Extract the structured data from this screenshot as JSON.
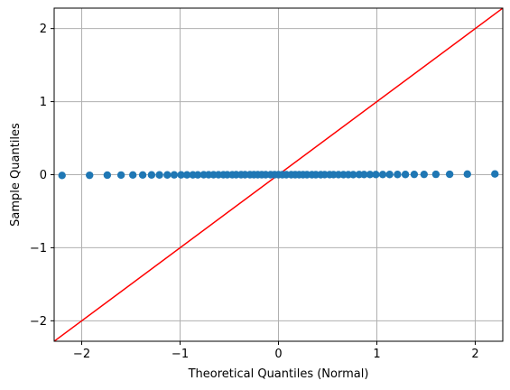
{
  "chart_data": {
    "type": "scatter",
    "title": "",
    "xlabel": "Theoretical Quantiles (Normal)",
    "ylabel": "Sample Quantiles",
    "xlim": [
      -2.28,
      2.28
    ],
    "ylim": [
      -2.28,
      2.28
    ],
    "grid": true,
    "xticks": [
      -2,
      -1,
      0,
      1,
      2
    ],
    "yticks": [
      -2,
      -1,
      0,
      1,
      2
    ],
    "xtick_labels": [
      "−2",
      "−1",
      "0",
      "1",
      "2"
    ],
    "ytick_labels": [
      "−2",
      "−1",
      "0",
      "1",
      "2"
    ],
    "reference_line": {
      "x": [
        -2.28,
        2.28
      ],
      "y": [
        -2.28,
        2.28
      ]
    },
    "colors": {
      "points": "#1f77b4",
      "line": "#ff0000",
      "grid": "#b0b0b0"
    },
    "series": [
      {
        "x": [
          -2.2,
          -1.92,
          -1.74,
          -1.6,
          -1.48,
          -1.38,
          -1.29,
          -1.21,
          -1.13,
          -1.06,
          -0.99,
          -0.93,
          -0.87,
          -0.82,
          -0.76,
          -0.71,
          -0.66,
          -0.61,
          -0.56,
          -0.52,
          -0.47,
          -0.43,
          -0.38,
          -0.34,
          -0.29,
          -0.25,
          -0.21,
          -0.17,
          -0.13,
          -0.08,
          -0.04,
          0.0,
          0.04,
          0.08,
          0.13,
          0.17,
          0.21,
          0.25,
          0.29,
          0.34,
          0.38,
          0.43,
          0.47,
          0.52,
          0.56,
          0.61,
          0.66,
          0.71,
          0.76,
          0.82,
          0.87,
          0.93,
          0.99,
          1.06,
          1.13,
          1.21,
          1.29,
          1.38,
          1.48,
          1.6,
          1.74,
          1.92,
          2.2
        ],
        "y": [
          -0.01,
          -0.008,
          -0.006,
          -0.005,
          -0.004,
          -0.004,
          -0.003,
          -0.003,
          -0.003,
          -0.002,
          -0.002,
          -0.002,
          -0.002,
          -0.002,
          -0.001,
          -0.001,
          -0.001,
          -0.001,
          -0.001,
          -0.001,
          -0.001,
          0.0,
          0.0,
          0.0,
          0.0,
          0.0,
          0.0,
          0.0,
          0.0,
          0.0,
          0.0,
          0.0,
          0.0,
          0.0,
          0.0,
          0.0,
          0.0,
          0.0,
          0.0,
          0.0,
          0.0,
          0.0,
          0.001,
          0.001,
          0.001,
          0.001,
          0.001,
          0.001,
          0.001,
          0.002,
          0.002,
          0.002,
          0.002,
          0.002,
          0.003,
          0.003,
          0.003,
          0.004,
          0.004,
          0.005,
          0.006,
          0.008,
          0.01
        ]
      }
    ]
  }
}
